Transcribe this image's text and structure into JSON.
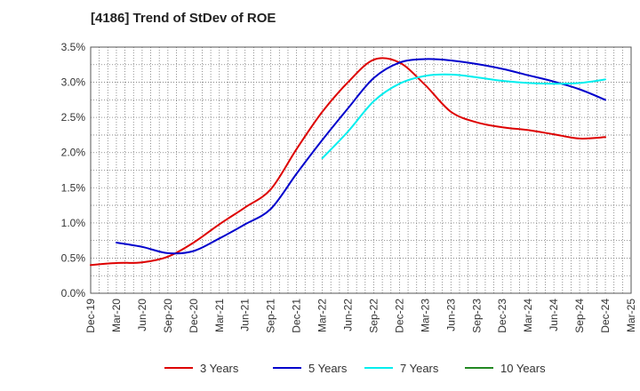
{
  "chart_data": {
    "type": "line",
    "title": "[4186]  Trend of StDev of ROE",
    "xlabel": "",
    "ylabel": "",
    "x_ticks": [
      "Dec-19",
      "Mar-20",
      "Jun-20",
      "Sep-20",
      "Dec-20",
      "Mar-21",
      "Jun-21",
      "Sep-21",
      "Dec-21",
      "Mar-22",
      "Jun-22",
      "Sep-22",
      "Dec-22",
      "Mar-23",
      "Jun-23",
      "Sep-23",
      "Dec-23",
      "Mar-24",
      "Jun-24",
      "Sep-24",
      "Dec-24",
      "Mar-25"
    ],
    "y_ticks": [
      0,
      0.5,
      1.0,
      1.5,
      2.0,
      2.5,
      3.0,
      3.5
    ],
    "y_tick_labels": [
      "0.0%",
      "0.5%",
      "1.0%",
      "1.5%",
      "2.0%",
      "2.5%",
      "3.0%",
      "3.5%"
    ],
    "ylim": [
      0,
      3.5
    ],
    "grid": true,
    "legend_position": "bottom",
    "series": [
      {
        "name": "3 Years",
        "color": "#dd0000",
        "x": [
          "Dec-19",
          "Mar-20",
          "Jun-20",
          "Sep-20",
          "Dec-20",
          "Mar-21",
          "Jun-21",
          "Sep-21",
          "Dec-21",
          "Mar-22",
          "Jun-22",
          "Sep-22",
          "Dec-22",
          "Mar-23",
          "Jun-23",
          "Sep-23",
          "Dec-23",
          "Mar-24",
          "Jun-24",
          "Sep-24",
          "Dec-24"
        ],
        "values": [
          0.4,
          0.43,
          0.44,
          0.52,
          0.72,
          0.98,
          1.22,
          1.48,
          2.05,
          2.58,
          3.0,
          3.32,
          3.28,
          2.96,
          2.58,
          2.43,
          2.36,
          2.32,
          2.26,
          2.2,
          2.22
        ]
      },
      {
        "name": "5 Years",
        "color": "#0000cc",
        "x": [
          "Mar-20",
          "Jun-20",
          "Sep-20",
          "Dec-20",
          "Mar-21",
          "Jun-21",
          "Sep-21",
          "Dec-21",
          "Mar-22",
          "Jun-22",
          "Sep-22",
          "Dec-22",
          "Mar-23",
          "Jun-23",
          "Sep-23",
          "Dec-23",
          "Mar-24",
          "Jun-24",
          "Sep-24",
          "Dec-24"
        ],
        "values": [
          0.72,
          0.66,
          0.57,
          0.6,
          0.78,
          0.98,
          1.2,
          1.7,
          2.18,
          2.63,
          3.06,
          3.28,
          3.33,
          3.31,
          3.26,
          3.19,
          3.1,
          3.01,
          2.9,
          2.75
        ]
      },
      {
        "name": "7 Years",
        "color": "#00eeee",
        "x": [
          "Mar-22",
          "Jun-22",
          "Sep-22",
          "Dec-22",
          "Mar-23",
          "Jun-23",
          "Sep-23",
          "Dec-23",
          "Mar-24",
          "Jun-24",
          "Sep-24",
          "Dec-24"
        ],
        "values": [
          1.92,
          2.3,
          2.73,
          2.98,
          3.09,
          3.11,
          3.07,
          3.02,
          2.99,
          2.98,
          2.99,
          3.04
        ]
      },
      {
        "name": "10 Years",
        "color": "#228822",
        "x": [],
        "values": []
      }
    ]
  }
}
